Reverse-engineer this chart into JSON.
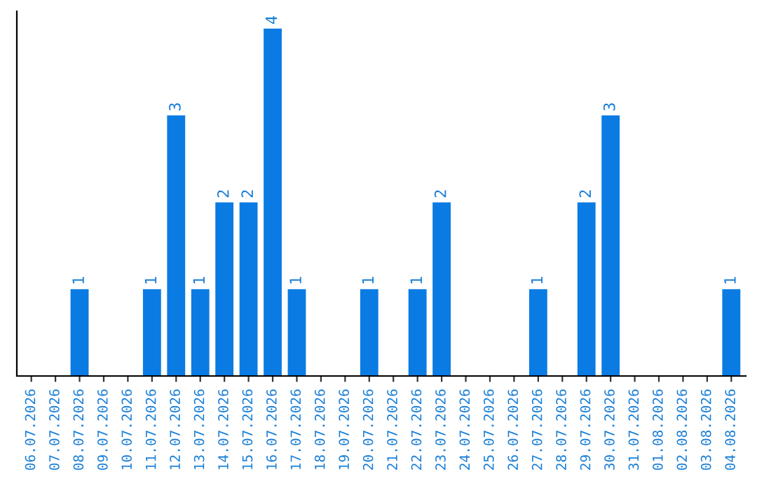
{
  "chart_data": {
    "type": "bar",
    "categories": [
      "06.07.2026",
      "07.07.2026",
      "08.07.2026",
      "09.07.2026",
      "10.07.2026",
      "11.07.2026",
      "12.07.2026",
      "13.07.2026",
      "14.07.2026",
      "15.07.2026",
      "16.07.2026",
      "17.07.2026",
      "18.07.2026",
      "19.07.2026",
      "20.07.2026",
      "21.07.2026",
      "22.07.2026",
      "23.07.2026",
      "24.07.2026",
      "25.07.2026",
      "26.07.2026",
      "27.07.2026",
      "28.07.2026",
      "29.07.2026",
      "30.07.2026",
      "31.07.2026",
      "01.08.2026",
      "02.08.2026",
      "03.08.2026",
      "04.08.2026"
    ],
    "values": [
      0,
      0,
      1,
      0,
      0,
      1,
      3,
      1,
      2,
      2,
      4,
      1,
      0,
      0,
      1,
      0,
      1,
      2,
      0,
      0,
      0,
      1,
      0,
      2,
      3,
      0,
      0,
      0,
      0,
      1
    ],
    "value_labels": [
      null,
      null,
      "1",
      null,
      null,
      "1",
      "3",
      "1",
      "2",
      "2",
      "4",
      "1",
      null,
      null,
      "1",
      null,
      "1",
      "2",
      null,
      null,
      null,
      "1",
      null,
      "2",
      "3",
      null,
      null,
      null,
      null,
      "1"
    ],
    "color": "#0a7be3",
    "ylim": [
      0,
      4.2
    ],
    "tick_labels": "x",
    "grid": false,
    "legend": false
  }
}
